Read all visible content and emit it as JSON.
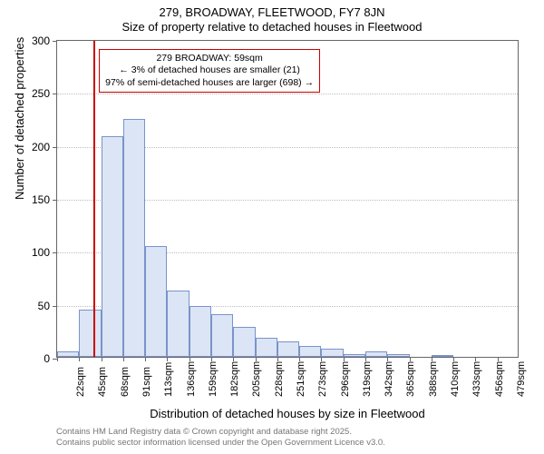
{
  "chart": {
    "type": "histogram",
    "title_line1": "279, BROADWAY, FLEETWOOD, FY7 8JN",
    "title_line2": "Size of property relative to detached houses in Fleetwood",
    "x_axis_label": "Distribution of detached houses by size in Fleetwood",
    "y_axis_label": "Number of detached properties",
    "background_color": "#ffffff",
    "plot_border_color": "#666666",
    "grid_color": "#bfbfbf",
    "bar_fill_color": "#dbe5f6",
    "bar_border_color": "#7a93c9",
    "ylim": [
      0,
      300
    ],
    "ytick_step": 50,
    "y_ticks": [
      0,
      50,
      100,
      150,
      200,
      250,
      300
    ],
    "x_ticks": [
      "22sqm",
      "45sqm",
      "68sqm",
      "91sqm",
      "113sqm",
      "136sqm",
      "159sqm",
      "182sqm",
      "205sqm",
      "228sqm",
      "251sqm",
      "273sqm",
      "296sqm",
      "319sqm",
      "342sqm",
      "365sqm",
      "388sqm",
      "410sqm",
      "433sqm",
      "456sqm",
      "479sqm"
    ],
    "bars": [
      5,
      45,
      208,
      225,
      105,
      63,
      48,
      40,
      28,
      18,
      15,
      10,
      8,
      3,
      5,
      3,
      0,
      2,
      0,
      0,
      0
    ],
    "reference_line": {
      "position_index": 1.65,
      "color": "#cc0000",
      "width": 2
    },
    "annotation": {
      "line1": "279 BROADWAY: 59sqm",
      "line2": "← 3% of detached houses are smaller (21)",
      "line3": "97% of semi-detached houses are larger (698) →",
      "border_color": "#cc0000",
      "left_index": 1.9,
      "top_value": 292
    },
    "title_fontsize": 13,
    "label_fontsize": 13,
    "tick_fontsize": 12,
    "annotation_fontsize": 10.5
  },
  "footer": {
    "line1": "Contains HM Land Registry data © Crown copyright and database right 2025.",
    "line2": "Contains public sector information licensed under the Open Government Licence v3.0.",
    "color": "#767676"
  }
}
